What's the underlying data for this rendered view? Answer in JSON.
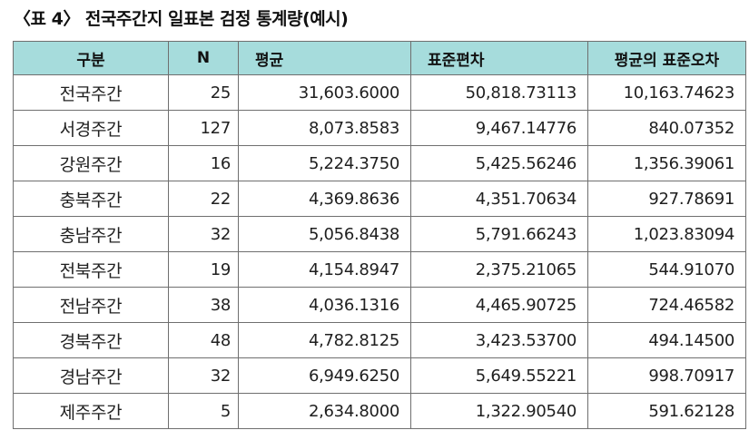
{
  "caption": "〈표 4〉 전국주간지 일표본 검정 통계량(예시)",
  "table": {
    "headers": {
      "region": "구분",
      "n": "N",
      "mean": "평균",
      "sd": "표준편차",
      "se": "평균의 표준오차"
    },
    "rows": [
      {
        "region": "전국주간",
        "n": "25",
        "mean": "31,603.6000",
        "sd": "50,818.73113",
        "se": "10,163.74623"
      },
      {
        "region": "서경주간",
        "n": "127",
        "mean": "8,073.8583",
        "sd": "9,467.14776",
        "se": "840.07352"
      },
      {
        "region": "강원주간",
        "n": "16",
        "mean": "5,224.3750",
        "sd": "5,425.56246",
        "se": "1,356.39061"
      },
      {
        "region": "충북주간",
        "n": "22",
        "mean": "4,369.8636",
        "sd": "4,351.70634",
        "se": "927.78691"
      },
      {
        "region": "충남주간",
        "n": "32",
        "mean": "5,056.8438",
        "sd": "5,791.66243",
        "se": "1,023.83094"
      },
      {
        "region": "전북주간",
        "n": "19",
        "mean": "4,154.8947",
        "sd": "2,375.21065",
        "se": "544.91070"
      },
      {
        "region": "전남주간",
        "n": "38",
        "mean": "4,036.1316",
        "sd": "4,465.90725",
        "se": "724.46582"
      },
      {
        "region": "경북주간",
        "n": "48",
        "mean": "4,782.8125",
        "sd": "3,423.53700",
        "se": "494.14500"
      },
      {
        "region": "경남주간",
        "n": "32",
        "mean": "6,949.6250",
        "sd": "5,649.55221",
        "se": "998.70917"
      },
      {
        "region": "제주주간",
        "n": "5",
        "mean": "2,634.8000",
        "sd": "1,322.90540",
        "se": "591.62128"
      }
    ]
  }
}
